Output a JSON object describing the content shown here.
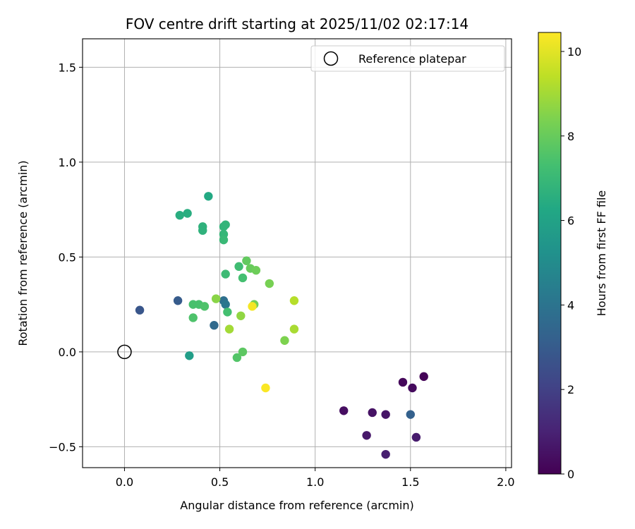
{
  "chart_data": {
    "type": "scatter",
    "title": "FOV centre drift starting at 2025/11/02 02:17:14",
    "xlabel": "Angular distance from reference (arcmin)",
    "ylabel": "Rotation from reference (arcmin)",
    "xlim": [
      -0.22,
      2.03
    ],
    "ylim": [
      -0.61,
      1.65
    ],
    "xticks": [
      0.0,
      0.5,
      1.0,
      1.5,
      2.0
    ],
    "xtick_labels": [
      "0.0",
      "0.5",
      "1.0",
      "1.5",
      "2.0"
    ],
    "yticks": [
      -0.5,
      0.0,
      0.5,
      1.0,
      1.5
    ],
    "ytick_labels": [
      "−0.5",
      "0.0",
      "0.5",
      "1.0",
      "1.5"
    ],
    "grid": true,
    "legend": {
      "position": "top-right",
      "label": "Reference platepar"
    },
    "reference_point": {
      "x": 0.0,
      "y": 0.0
    },
    "colorbar": {
      "label": "Hours from first FF file",
      "range": [
        0,
        10.45
      ],
      "ticks": [
        0,
        2,
        4,
        6,
        8,
        10
      ],
      "tick_labels": [
        "0",
        "2",
        "4",
        "6",
        "8",
        "10"
      ],
      "colormap": "viridis"
    },
    "points": [
      {
        "x": 1.57,
        "y": -0.13,
        "hours": 0.1
      },
      {
        "x": 1.46,
        "y": -0.16,
        "hours": 0.2
      },
      {
        "x": 1.51,
        "y": -0.19,
        "hours": 0.3
      },
      {
        "x": 1.15,
        "y": -0.31,
        "hours": 0.4
      },
      {
        "x": 1.3,
        "y": -0.32,
        "hours": 0.5
      },
      {
        "x": 1.37,
        "y": -0.33,
        "hours": 0.6
      },
      {
        "x": 1.27,
        "y": -0.44,
        "hours": 0.7
      },
      {
        "x": 1.53,
        "y": -0.45,
        "hours": 0.8
      },
      {
        "x": 1.37,
        "y": -0.54,
        "hours": 0.9
      },
      {
        "x": 0.08,
        "y": 0.22,
        "hours": 2.8
      },
      {
        "x": 0.28,
        "y": 0.27,
        "hours": 3.0
      },
      {
        "x": 1.5,
        "y": -0.33,
        "hours": 3.2
      },
      {
        "x": 0.47,
        "y": 0.14,
        "hours": 3.6
      },
      {
        "x": 0.52,
        "y": 0.27,
        "hours": 3.8
      },
      {
        "x": 0.53,
        "y": 0.25,
        "hours": 4.1
      },
      {
        "x": 0.34,
        "y": -0.02,
        "hours": 5.8
      },
      {
        "x": 0.44,
        "y": 0.82,
        "hours": 6.3
      },
      {
        "x": 0.29,
        "y": 0.72,
        "hours": 6.5
      },
      {
        "x": 0.33,
        "y": 0.73,
        "hours": 6.5
      },
      {
        "x": 0.41,
        "y": 0.66,
        "hours": 6.7
      },
      {
        "x": 0.41,
        "y": 0.64,
        "hours": 6.7
      },
      {
        "x": 0.52,
        "y": 0.66,
        "hours": 6.8
      },
      {
        "x": 0.53,
        "y": 0.67,
        "hours": 6.8
      },
      {
        "x": 0.52,
        "y": 0.62,
        "hours": 6.9
      },
      {
        "x": 0.52,
        "y": 0.59,
        "hours": 7.0
      },
      {
        "x": 0.53,
        "y": 0.41,
        "hours": 7.1
      },
      {
        "x": 0.6,
        "y": 0.45,
        "hours": 7.2
      },
      {
        "x": 0.62,
        "y": 0.39,
        "hours": 7.3
      },
      {
        "x": 0.54,
        "y": 0.21,
        "hours": 7.3
      },
      {
        "x": 0.36,
        "y": 0.25,
        "hours": 7.4
      },
      {
        "x": 0.39,
        "y": 0.25,
        "hours": 7.4
      },
      {
        "x": 0.42,
        "y": 0.24,
        "hours": 7.5
      },
      {
        "x": 0.36,
        "y": 0.18,
        "hours": 7.5
      },
      {
        "x": 0.59,
        "y": -0.03,
        "hours": 7.6
      },
      {
        "x": 0.62,
        "y": 0.0,
        "hours": 7.8
      },
      {
        "x": 0.64,
        "y": 0.48,
        "hours": 7.9
      },
      {
        "x": 0.66,
        "y": 0.44,
        "hours": 8.0
      },
      {
        "x": 0.69,
        "y": 0.43,
        "hours": 8.1
      },
      {
        "x": 0.68,
        "y": 0.25,
        "hours": 8.2
      },
      {
        "x": 0.76,
        "y": 0.36,
        "hours": 8.3
      },
      {
        "x": 0.84,
        "y": 0.06,
        "hours": 8.4
      },
      {
        "x": 0.48,
        "y": 0.28,
        "hours": 8.6
      },
      {
        "x": 0.61,
        "y": 0.19,
        "hours": 8.7
      },
      {
        "x": 0.55,
        "y": 0.12,
        "hours": 9.0
      },
      {
        "x": 0.89,
        "y": 0.12,
        "hours": 9.1
      },
      {
        "x": 0.89,
        "y": 0.27,
        "hours": 9.3
      },
      {
        "x": 0.67,
        "y": 0.24,
        "hours": 10.3
      },
      {
        "x": 0.74,
        "y": -0.19,
        "hours": 10.4
      }
    ]
  }
}
